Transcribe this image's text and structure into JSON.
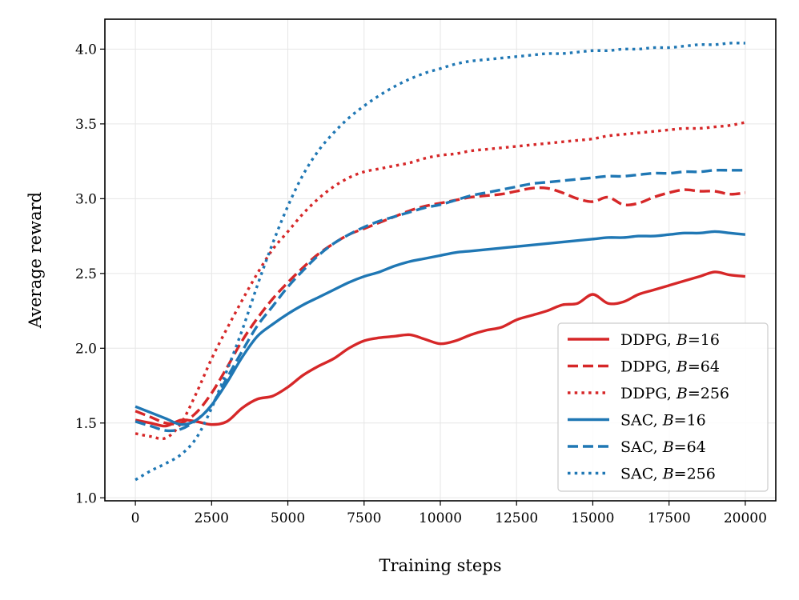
{
  "chart_data": {
    "type": "line",
    "title": "",
    "xlabel": "Training steps",
    "ylabel": "Average reward",
    "xlim": [
      -1000,
      21000
    ],
    "ylim": [
      0.98,
      4.2
    ],
    "xticks": [
      0,
      2500,
      5000,
      7500,
      10000,
      12500,
      15000,
      17500,
      20000
    ],
    "xtick_labels": [
      "0",
      "2500",
      "5000",
      "7500",
      "10000",
      "12500",
      "15000",
      "17500",
      "20000"
    ],
    "yticks": [
      1.0,
      1.5,
      2.0,
      2.5,
      3.0,
      3.5,
      4.0
    ],
    "ytick_labels": [
      "1.0",
      "1.5",
      "2.0",
      "2.5",
      "3.0",
      "3.5",
      "4.0"
    ],
    "grid": true,
    "legend_position": "lower-right",
    "x": [
      0,
      500,
      1000,
      1500,
      2000,
      2500,
      3000,
      3500,
      4000,
      4500,
      5000,
      5500,
      6000,
      6500,
      7000,
      7500,
      8000,
      8500,
      9000,
      9500,
      10000,
      10500,
      11000,
      11500,
      12000,
      12500,
      13000,
      13500,
      14000,
      14500,
      15000,
      15500,
      16000,
      16500,
      17000,
      17500,
      18000,
      18500,
      19000,
      19500,
      20000
    ],
    "series": [
      {
        "name": "DDPG, B=16",
        "legend_prefix": "DDPG, ",
        "legend_var": "B",
        "legend_suffix": "=16",
        "color": "#d62728",
        "linestyle": "solid",
        "values": [
          1.52,
          1.5,
          1.48,
          1.52,
          1.51,
          1.49,
          1.51,
          1.6,
          1.66,
          1.68,
          1.74,
          1.82,
          1.88,
          1.93,
          2.0,
          2.05,
          2.07,
          2.08,
          2.09,
          2.06,
          2.03,
          2.05,
          2.09,
          2.12,
          2.14,
          2.19,
          2.22,
          2.25,
          2.29,
          2.3,
          2.36,
          2.3,
          2.31,
          2.36,
          2.39,
          2.42,
          2.45,
          2.48,
          2.51,
          2.49,
          2.48
        ]
      },
      {
        "name": "DDPG, B=64",
        "legend_prefix": "DDPG, ",
        "legend_var": "B",
        "legend_suffix": "=64",
        "color": "#d62728",
        "linestyle": "dashed",
        "values": [
          1.58,
          1.54,
          1.5,
          1.5,
          1.57,
          1.7,
          1.87,
          2.05,
          2.2,
          2.33,
          2.44,
          2.54,
          2.63,
          2.7,
          2.76,
          2.8,
          2.84,
          2.88,
          2.92,
          2.95,
          2.97,
          2.99,
          3.01,
          3.02,
          3.03,
          3.05,
          3.07,
          3.07,
          3.04,
          3.0,
          2.98,
          3.01,
          2.96,
          2.97,
          3.01,
          3.04,
          3.06,
          3.05,
          3.05,
          3.03,
          3.04
        ]
      },
      {
        "name": "DDPG, B=256",
        "legend_prefix": "DDPG, ",
        "legend_var": "B",
        "legend_suffix": "=256",
        "color": "#d62728",
        "linestyle": "dotted",
        "values": [
          1.43,
          1.41,
          1.4,
          1.5,
          1.7,
          1.93,
          2.13,
          2.32,
          2.5,
          2.66,
          2.78,
          2.9,
          3.0,
          3.08,
          3.14,
          3.18,
          3.2,
          3.22,
          3.24,
          3.27,
          3.29,
          3.3,
          3.32,
          3.33,
          3.34,
          3.35,
          3.36,
          3.37,
          3.38,
          3.39,
          3.4,
          3.42,
          3.43,
          3.44,
          3.45,
          3.46,
          3.47,
          3.47,
          3.48,
          3.49,
          3.51
        ]
      },
      {
        "name": "SAC, B=16",
        "legend_prefix": "SAC, ",
        "legend_var": "B",
        "legend_suffix": "=16",
        "color": "#1f77b4",
        "linestyle": "solid",
        "values": [
          1.61,
          1.57,
          1.53,
          1.49,
          1.52,
          1.62,
          1.77,
          1.94,
          2.08,
          2.16,
          2.23,
          2.29,
          2.34,
          2.39,
          2.44,
          2.48,
          2.51,
          2.55,
          2.58,
          2.6,
          2.62,
          2.64,
          2.65,
          2.66,
          2.67,
          2.68,
          2.69,
          2.7,
          2.71,
          2.72,
          2.73,
          2.74,
          2.74,
          2.75,
          2.75,
          2.76,
          2.77,
          2.77,
          2.78,
          2.77,
          2.76
        ]
      },
      {
        "name": "SAC, B=64",
        "legend_prefix": "SAC, ",
        "legend_var": "B",
        "legend_suffix": "=64",
        "color": "#1f77b4",
        "linestyle": "dashed",
        "values": [
          1.51,
          1.48,
          1.45,
          1.46,
          1.52,
          1.62,
          1.8,
          1.98,
          2.15,
          2.28,
          2.41,
          2.52,
          2.62,
          2.7,
          2.76,
          2.81,
          2.85,
          2.88,
          2.91,
          2.94,
          2.96,
          2.99,
          3.02,
          3.04,
          3.06,
          3.08,
          3.1,
          3.11,
          3.12,
          3.13,
          3.14,
          3.15,
          3.15,
          3.16,
          3.17,
          3.17,
          3.18,
          3.18,
          3.19,
          3.19,
          3.19
        ]
      },
      {
        "name": "SAC, B=256",
        "legend_prefix": "SAC, ",
        "legend_var": "B",
        "legend_suffix": "=256",
        "color": "#1f77b4",
        "linestyle": "dotted",
        "values": [
          1.12,
          1.18,
          1.23,
          1.29,
          1.4,
          1.6,
          1.85,
          2.12,
          2.42,
          2.7,
          2.95,
          3.16,
          3.32,
          3.44,
          3.54,
          3.62,
          3.69,
          3.75,
          3.8,
          3.84,
          3.87,
          3.9,
          3.92,
          3.93,
          3.94,
          3.95,
          3.96,
          3.97,
          3.97,
          3.98,
          3.99,
          3.99,
          4.0,
          4.0,
          4.01,
          4.01,
          4.02,
          4.03,
          4.03,
          4.04,
          4.04
        ]
      }
    ]
  }
}
